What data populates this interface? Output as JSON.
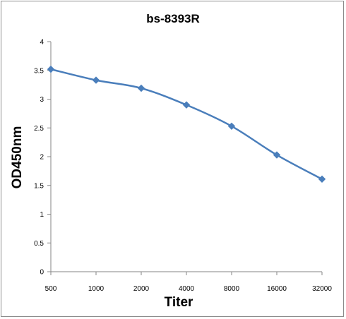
{
  "chart_data": {
    "type": "line",
    "title": "bs-8393R",
    "xlabel": "Titer",
    "ylabel": "OD450nm",
    "categories": [
      "500",
      "1000",
      "2000",
      "4000",
      "8000",
      "16000",
      "32000"
    ],
    "series": [
      {
        "values": [
          3.52,
          3.33,
          3.19,
          2.9,
          2.53,
          2.03,
          1.61
        ],
        "color": "#4a7ebb",
        "marker": "diamond"
      }
    ],
    "ylim": [
      0,
      4
    ],
    "yticks": [
      "0",
      "0.5",
      "1",
      "1.5",
      "2",
      "2.5",
      "3",
      "3.5",
      "4"
    ],
    "grid": false,
    "legend": "none"
  }
}
